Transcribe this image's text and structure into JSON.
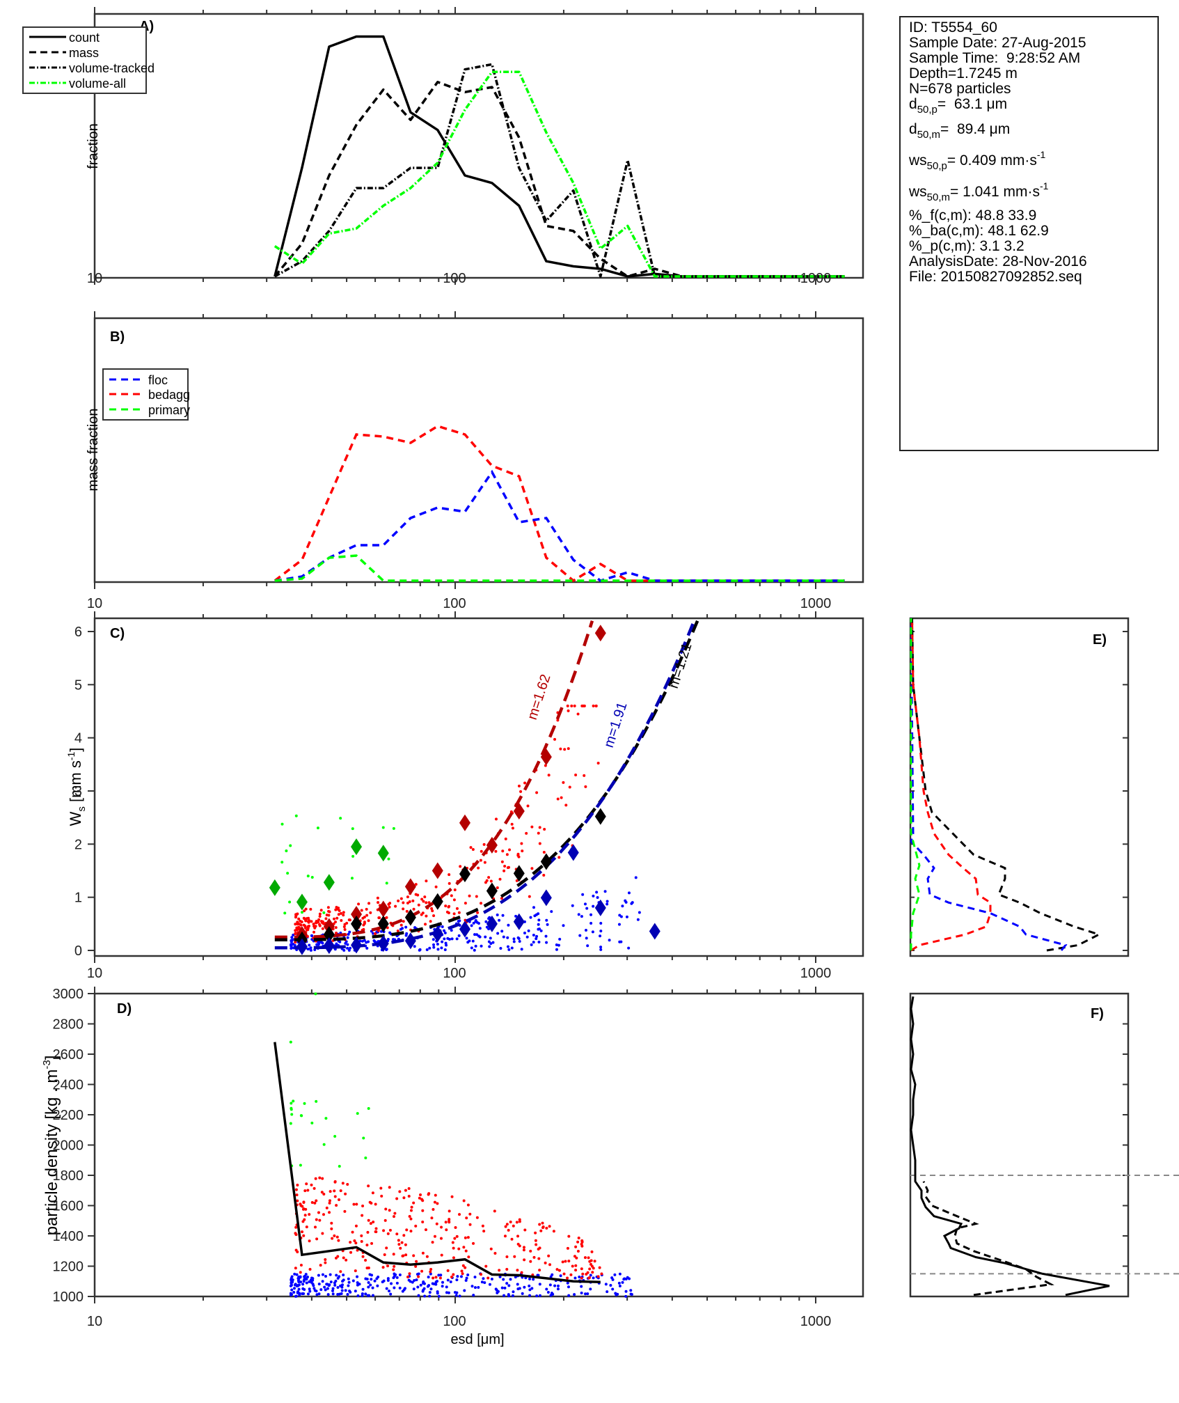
{
  "info_box": {
    "id": "ID: T5554_60",
    "sample_date": "Sample Date: 27-Aug-2015",
    "sample_time": "Sample Time:  9:28:52 AM",
    "depth": "Depth=1.7245 m",
    "n": "N=678 particles",
    "d50p_label": "d",
    "d50p_sub": "50,p",
    "d50p_value": "=  63.1 μm",
    "d50m_label": "d",
    "d50m_sub": "50,m",
    "d50m_value": "=  89.4 μm",
    "ws50p_label": "ws",
    "ws50p_sub": "50,p",
    "ws50p_value": "= 0.409 mm·s",
    "ws50p_sup": "-1",
    "ws50m_label": "ws",
    "ws50m_sub": "50,m",
    "ws50m_value": "= 1.041 mm·s",
    "ws50m_sup": "-1",
    "pct_f": "%_f(c,m): 48.8 33.9",
    "pct_ba": "%_ba(c,m): 48.1 62.9",
    "pct_p": "%_p(c,m): 3.1 3.2",
    "analysis_date": "AnalysisDate: 28-Nov-2016",
    "file": "File: 20150827092852.seq"
  },
  "colors": {
    "count": "#000000",
    "mass": "#000000",
    "volume_tracked": "#000000",
    "volume_all": "#00ff00",
    "floc": "#0000ff",
    "bedagg": "#ff0000",
    "primary": "#00ff00",
    "floc_median": "#0000b4",
    "bedagg_median": "#b40000",
    "primary_median": "#00aa00",
    "all_median": "#000000",
    "ref_line": "#888888"
  },
  "chart_data": [
    {
      "panel": "A)",
      "type": "line",
      "xscale": "log",
      "xlim": [
        10,
        1500
      ],
      "x_ticks": [
        10,
        100,
        1000
      ],
      "ylabel": "fraction",
      "legend": [
        "count",
        "mass",
        "volume-tracked",
        "volume-all"
      ],
      "legend_position": "top-left",
      "x": [
        31.6,
        37.6,
        44.7,
        53.2,
        63.2,
        75.2,
        89.4,
        106.4,
        126.5,
        150.4,
        178.9,
        212.7,
        253,
        300.9,
        357.8,
        425.5,
        506,
        601.7,
        715.5,
        850.9,
        1011.9,
        1203.3
      ],
      "series": [
        {
          "name": "count",
          "style": "solid",
          "values": [
            0,
            0.43,
            0.91,
            0.95,
            0.95,
            0.65,
            0.58,
            0.4,
            0.37,
            0.28,
            0.06,
            0.04,
            0.03,
            0.0,
            0.01,
            0.0,
            0,
            0,
            0,
            0,
            0,
            0
          ]
        },
        {
          "name": "mass",
          "style": "dashed",
          "values": [
            0,
            0.13,
            0.4,
            0.6,
            0.74,
            0.62,
            0.77,
            0.73,
            0.75,
            0.55,
            0.2,
            0.18,
            0.07,
            0.0,
            0.03,
            0.0,
            0,
            0,
            0,
            0,
            0,
            0
          ]
        },
        {
          "name": "volume-tracked",
          "style": "dashdot",
          "values": [
            0,
            0.06,
            0.18,
            0.35,
            0.35,
            0.43,
            0.43,
            0.82,
            0.84,
            0.43,
            0.22,
            0.34,
            0.0,
            0.46,
            0.0,
            0.0,
            0,
            0,
            0,
            0,
            0,
            0
          ]
        },
        {
          "name": "volume-all",
          "style": "dashdot",
          "color": "volume_all",
          "values": [
            0.12,
            0.05,
            0.17,
            0.19,
            0.28,
            0.35,
            0.45,
            0.66,
            0.81,
            0.81,
            0.57,
            0.37,
            0.11,
            0.2,
            0.0,
            0.0,
            0,
            0,
            0,
            0,
            0,
            0
          ]
        }
      ]
    },
    {
      "panel": "B)",
      "type": "line",
      "xscale": "log",
      "xlim": [
        10,
        1500
      ],
      "x_ticks": [
        10,
        100,
        1000
      ],
      "ylabel": "mass fraction",
      "legend": [
        "floc",
        "bedagg",
        "primary"
      ],
      "legend_position": "top-left",
      "x": [
        31.6,
        37.6,
        44.7,
        53.2,
        63.2,
        75.2,
        89.4,
        106.4,
        126.5,
        150.4,
        178.9,
        212.7,
        253,
        300.9,
        357.8,
        425.5,
        506,
        601.7,
        715.5,
        850.9,
        1011.9,
        1203.3
      ],
      "series": [
        {
          "name": "floc",
          "values": [
            0,
            0.02,
            0.11,
            0.17,
            0.17,
            0.3,
            0.35,
            0.33,
            0.52,
            0.28,
            0.3,
            0.1,
            0.0,
            0.04,
            0.0,
            0,
            0,
            0,
            0,
            0,
            0,
            0
          ]
        },
        {
          "name": "bedagg",
          "values": [
            0,
            0.1,
            0.4,
            0.7,
            0.69,
            0.66,
            0.74,
            0.7,
            0.55,
            0.5,
            0.11,
            0.0,
            0.08,
            0.0,
            0,
            0,
            0,
            0,
            0,
            0,
            0,
            0
          ]
        },
        {
          "name": "primary",
          "values": [
            0,
            0.01,
            0.11,
            0.12,
            0.0,
            0,
            0,
            0,
            0,
            0,
            0,
            0,
            0,
            0,
            0,
            0,
            0,
            0,
            0,
            0,
            0,
            0
          ]
        }
      ]
    },
    {
      "panel": "C)",
      "type": "scatter",
      "xscale": "log",
      "xlim": [
        10,
        1500
      ],
      "ylim": [
        -0.1,
        6.25
      ],
      "x_ticks": [
        10,
        100,
        1000
      ],
      "y_ticks": [
        0,
        1,
        2,
        3,
        4,
        5,
        6
      ],
      "ylabel": "W_s [mm s^-1]",
      "annotations": [
        {
          "text": "m=1.62",
          "color": "bedagg_median"
        },
        {
          "text": "m=1.91",
          "color": "floc_median"
        },
        {
          "text": "m=1.21",
          "color": "all_median"
        }
      ],
      "bin_medians": {
        "primary": {
          "x": [
            31.6,
            37.6,
            44.7,
            53.2,
            63.2
          ],
          "y": [
            1.18,
            0.91,
            1.28,
            1.95,
            1.83
          ]
        },
        "bedagg": {
          "x": [
            37.6,
            44.7,
            53.2,
            63.2,
            75.2,
            89.4,
            106.4,
            126.5,
            150.4,
            178.9,
            253
          ],
          "y": [
            0.3,
            0.45,
            0.68,
            0.78,
            1.2,
            1.5,
            2.4,
            1.98,
            2.62,
            3.64,
            5.97
          ]
        },
        "all": {
          "x": [
            37.6,
            44.7,
            53.2,
            63.2,
            75.2,
            89.4,
            106.4,
            126.5,
            150.4,
            178.9,
            253
          ],
          "y": [
            0.2,
            0.3,
            0.5,
            0.5,
            0.62,
            0.92,
            1.44,
            1.12,
            1.45,
            1.67,
            2.52
          ]
        },
        "floc": {
          "x": [
            37.6,
            44.7,
            53.2,
            63.2,
            75.2,
            89.4,
            106.4,
            126.5,
            150.4,
            178.9,
            212.7,
            253,
            357.8
          ],
          "y": [
            0.07,
            0.09,
            0.1,
            0.13,
            0.18,
            0.31,
            0.4,
            0.5,
            0.54,
            0.99,
            1.84,
            0.8,
            0.36
          ]
        }
      },
      "fit_curves": [
        {
          "name": "bedagg",
          "m": 1.62,
          "x_range": [
            31.6,
            240
          ]
        },
        {
          "name": "all",
          "m": 1.21,
          "x_range": [
            31.6,
            470
          ]
        },
        {
          "name": "floc",
          "m": 1.91,
          "x_range": [
            31.6,
            460
          ]
        }
      ],
      "scatter_groups": [
        {
          "name": "floc",
          "n": 330,
          "x_range": [
            35,
            330
          ],
          "y_range": [
            0,
            1.0
          ]
        },
        {
          "name": "bedagg",
          "n": 330,
          "x_range": [
            36,
            250
          ],
          "y_range": [
            0.15,
            4.6
          ]
        },
        {
          "name": "primary",
          "n": 21,
          "x_range": [
            33,
            70
          ],
          "y_range": [
            0.7,
            3.1
          ]
        }
      ]
    },
    {
      "panel": "D)",
      "type": "scatter",
      "xscale": "log",
      "xlim": [
        10,
        1500
      ],
      "ylim": [
        1000,
        3000
      ],
      "x_ticks": [
        10,
        100,
        1000
      ],
      "y_ticks": [
        1000,
        1200,
        1400,
        1600,
        1800,
        2000,
        2200,
        2400,
        2600,
        2800,
        3000
      ],
      "xlabel": "esd [μm]",
      "ylabel": "particle density [kg . m^-3]",
      "median_line": {
        "x": [
          31.6,
          37.6,
          44.7,
          53.2,
          63.2,
          75.2,
          89.4,
          106.4,
          126.5,
          150.4,
          178.9,
          212.7,
          253
        ],
        "y": [
          2680,
          1275,
          1300,
          1325,
          1225,
          1210,
          1225,
          1245,
          1145,
          1140,
          1120,
          1100,
          1095
        ]
      },
      "scatter_groups": [
        {
          "name": "floc",
          "n": 330,
          "x_range": [
            35,
            320
          ],
          "y_range": [
            1000,
            1150
          ]
        },
        {
          "name": "bedagg",
          "n": 330,
          "x_range": [
            36,
            255
          ],
          "y_range": [
            1100,
            1800
          ]
        },
        {
          "name": "primary",
          "n": 21,
          "x_range": [
            35,
            60
          ],
          "y_range": [
            1800,
            2320
          ]
        }
      ]
    },
    {
      "panel": "E)",
      "type": "line",
      "orientation": "horizontal-histogram",
      "ylim": [
        -0.1,
        6.25
      ],
      "series": [
        {
          "name": "all",
          "y": [
            0,
            0.1,
            0.3,
            0.45,
            0.7,
            0.9,
            1.05,
            1.35,
            1.55,
            1.8,
            2.2,
            2.6,
            3.0,
            4.0,
            5.0,
            6.25
          ],
          "values": [
            0.65,
            0.8,
            0.9,
            0.78,
            0.62,
            0.52,
            0.42,
            0.45,
            0.45,
            0.3,
            0.2,
            0.1,
            0.07,
            0.04,
            0.01,
            0.005
          ]
        },
        {
          "name": "floc",
          "y": [
            0,
            0.1,
            0.3,
            0.45,
            0.7,
            0.9,
            1.05,
            1.35,
            1.55,
            1.8,
            2.05,
            2.2,
            6.25
          ],
          "values": [
            0.72,
            0.74,
            0.55,
            0.52,
            0.38,
            0.18,
            0.09,
            0.08,
            0.11,
            0.06,
            0.0,
            0.01,
            0
          ]
        },
        {
          "name": "bedagg",
          "y": [
            0,
            0.1,
            0.3,
            0.45,
            0.7,
            0.9,
            1.05,
            1.35,
            1.55,
            1.8,
            2.2,
            2.6,
            3.0,
            4.0,
            5.0,
            6.25
          ],
          "values": [
            0.0,
            0.04,
            0.26,
            0.36,
            0.38,
            0.38,
            0.32,
            0.31,
            0.25,
            0.18,
            0.11,
            0.08,
            0.06,
            0.04,
            0.01,
            0.005
          ]
        },
        {
          "name": "primary",
          "y": [
            0,
            0.3,
            0.7,
            1.05,
            1.35,
            1.6,
            2.2,
            6.25
          ],
          "values": [
            0.0,
            0.0,
            0.01,
            0.04,
            0.02,
            0.04,
            0.0,
            0
          ]
        }
      ]
    },
    {
      "panel": "F)",
      "type": "line",
      "orientation": "horizontal-histogram",
      "ylim": [
        1000,
        3000
      ],
      "reference_lines": [
        1150,
        1800
      ],
      "series": [
        {
          "name": "count",
          "style": "solid",
          "y": [
            1010,
            1070,
            1150,
            1220,
            1260,
            1320,
            1350,
            1400,
            1450,
            1480,
            1530,
            1590,
            1650,
            1700,
            1760,
            1800,
            1850,
            1900,
            2000,
            2100,
            2200,
            2300,
            2400,
            2500,
            2600,
            2700,
            2800,
            2900,
            2980
          ],
          "values": [
            0.74,
            0.95,
            0.63,
            0.45,
            0.31,
            0.19,
            0.18,
            0.16,
            0.23,
            0.24,
            0.11,
            0.07,
            0.05,
            0.05,
            0.02,
            0.02,
            0.02,
            0.02,
            0.01,
            0.0,
            0.01,
            0.01,
            0.02,
            0.0,
            0.01,
            0.0,
            0.01,
            0.0,
            0.01
          ]
        },
        {
          "name": "mass",
          "style": "dashed",
          "y": [
            1010,
            1080,
            1130,
            1180,
            1230,
            1300,
            1350,
            1400,
            1450,
            1480,
            1530,
            1600,
            1660,
            1700,
            1760
          ],
          "values": [
            0.3,
            0.67,
            0.6,
            0.55,
            0.45,
            0.3,
            0.22,
            0.21,
            0.22,
            0.31,
            0.22,
            0.1,
            0.07,
            0.08,
            0.06
          ]
        }
      ]
    }
  ],
  "panel_labels": {
    "a": "A)",
    "b": "B)",
    "c": "C)",
    "d": "D)",
    "e": "E)",
    "f": "F)"
  },
  "axes_text": {
    "a_ylabel": "fraction",
    "b_ylabel": "mass fraction",
    "c_ylabel_main": "W",
    "c_ylabel_sub": "s",
    "c_ylabel_unit": " [mm s",
    "c_ylabel_sup": "-1",
    "c_ylabel_end": "]",
    "d_ylabel_main": "particle density [kg . m",
    "d_ylabel_sup": "-3",
    "d_ylabel_end": "]",
    "d_xlabel": "esd [μm]",
    "x_tick_labels": [
      "10",
      "100",
      "1000"
    ],
    "c_y_tick_labels": [
      "0",
      "1",
      "2",
      "3",
      "4",
      "5",
      "6"
    ],
    "d_y_tick_labels": [
      "1000",
      "1200",
      "1400",
      "1600",
      "1800",
      "2000",
      "2200",
      "2400",
      "2600",
      "2800",
      "3000"
    ]
  },
  "legend_a": [
    "count",
    "mass",
    "volume-tracked",
    "volume-all"
  ],
  "legend_b": [
    "floc",
    "bedagg",
    "primary"
  ]
}
